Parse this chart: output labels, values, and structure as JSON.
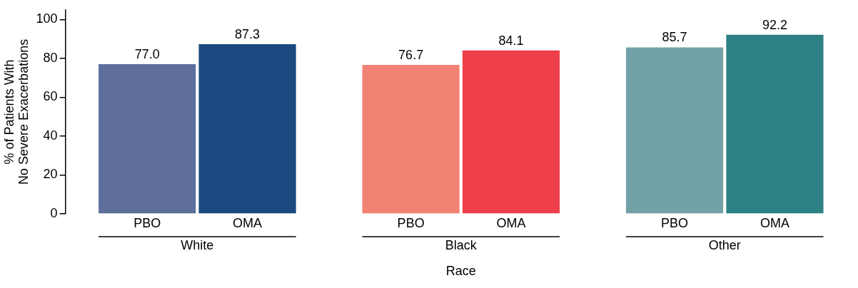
{
  "chart_data": {
    "type": "bar",
    "xlabel": "Race",
    "ylabel": "% of Patients With\nNo Severe Exacerbations",
    "categories": [
      "White",
      "Black",
      "Other"
    ],
    "series": [
      {
        "name": "PBO",
        "colors": [
          "#5e6f9b",
          "#f28274",
          "#72a1a8"
        ],
        "values": [
          77.0,
          76.7,
          85.7
        ],
        "value_labels": [
          "77.0",
          "76.7",
          "85.7"
        ]
      },
      {
        "name": "OMA",
        "colors": [
          "#1a4a80",
          "#ee3f4b",
          "#2d8184"
        ],
        "values": [
          87.3,
          84.1,
          92.2
        ],
        "value_labels": [
          "87.3",
          "84.1",
          "92.2"
        ]
      }
    ],
    "ylim": [
      0,
      105
    ],
    "yticks": [
      0,
      20,
      40,
      60,
      80,
      100
    ],
    "grid": false,
    "legend": false
  }
}
